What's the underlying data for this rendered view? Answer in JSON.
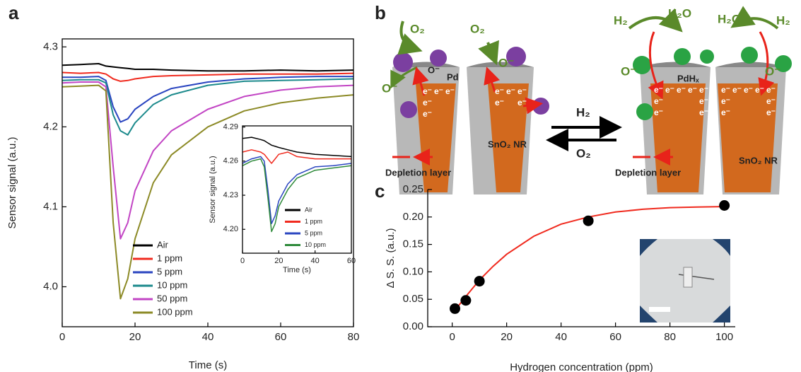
{
  "panel_labels": [
    "a",
    "b",
    "c"
  ],
  "chart_data": [
    {
      "type": "line",
      "xlabel": "Time (s)",
      "ylabel": "Sensor signal (a.u.)",
      "x": [
        0,
        5,
        10,
        12,
        14,
        16,
        18,
        20,
        25,
        30,
        40,
        50,
        60,
        70,
        80
      ],
      "series": [
        {
          "name": "Air",
          "color": "#000000",
          "values": [
            4.277,
            4.278,
            4.279,
            4.276,
            4.275,
            4.274,
            4.273,
            4.272,
            4.272,
            4.271,
            4.27,
            4.27,
            4.271,
            4.27,
            4.271
          ]
        },
        {
          "name": "1 ppm",
          "color": "#f02a1e",
          "values": [
            4.268,
            4.267,
            4.268,
            4.266,
            4.26,
            4.257,
            4.258,
            4.26,
            4.263,
            4.264,
            4.265,
            4.266,
            4.266,
            4.266,
            4.267
          ]
        },
        {
          "name": "5 ppm",
          "color": "#2a45c0",
          "values": [
            4.262,
            4.262,
            4.263,
            4.258,
            4.225,
            4.206,
            4.21,
            4.222,
            4.238,
            4.248,
            4.256,
            4.26,
            4.262,
            4.263,
            4.263
          ]
        },
        {
          "name": "10 ppm",
          "color": "#1c8a8c",
          "values": [
            4.258,
            4.259,
            4.259,
            4.255,
            4.215,
            4.195,
            4.19,
            4.205,
            4.228,
            4.24,
            4.252,
            4.257,
            4.258,
            4.259,
            4.26
          ]
        },
        {
          "name": "50 ppm",
          "color": "#c245c4",
          "values": [
            4.255,
            4.256,
            4.256,
            4.25,
            4.15,
            4.06,
            4.08,
            4.12,
            4.17,
            4.195,
            4.222,
            4.238,
            4.246,
            4.25,
            4.252
          ]
        },
        {
          "name": "100 ppm",
          "color": "#8c8a26",
          "values": [
            4.25,
            4.251,
            4.252,
            4.245,
            4.08,
            3.985,
            4.01,
            4.06,
            4.13,
            4.165,
            4.2,
            4.22,
            4.23,
            4.236,
            4.24
          ]
        }
      ],
      "xlim": [
        0,
        80
      ],
      "ylim": [
        3.95,
        4.31
      ],
      "xticks": [
        0,
        20,
        40,
        60,
        80
      ],
      "yticks": [
        {
          "value": 4,
          "label": "4.0"
        },
        4.1,
        4.2,
        4.3
      ],
      "legend": "lower center",
      "frame": true
    },
    {
      "type": "line",
      "xlabel": "Time (s)",
      "ylabel": "Sensor signal (a.u.)",
      "x": [
        0,
        5,
        10,
        12,
        14,
        16,
        18,
        20,
        25,
        30,
        40,
        50,
        60
      ],
      "series": [
        {
          "name": "Air",
          "color": "#000000",
          "values": [
            4.28,
            4.281,
            4.279,
            4.278,
            4.276,
            4.274,
            4.273,
            4.272,
            4.27,
            4.268,
            4.266,
            4.265,
            4.264
          ]
        },
        {
          "name": "1 ppm",
          "color": "#f02a1e",
          "values": [
            4.268,
            4.27,
            4.268,
            4.266,
            4.262,
            4.258,
            4.262,
            4.266,
            4.268,
            4.264,
            4.262,
            4.262,
            4.262
          ]
        },
        {
          "name": "5 ppm",
          "color": "#2a45c0",
          "values": [
            4.258,
            4.262,
            4.264,
            4.26,
            4.235,
            4.205,
            4.212,
            4.225,
            4.24,
            4.248,
            4.255,
            4.256,
            4.258
          ]
        },
        {
          "name": "10 ppm",
          "color": "#2e8a3a",
          "values": [
            4.256,
            4.26,
            4.262,
            4.255,
            4.228,
            4.198,
            4.205,
            4.22,
            4.235,
            4.245,
            4.252,
            4.254,
            4.256
          ]
        }
      ],
      "xlim": [
        0,
        60
      ],
      "ylim": [
        4.179,
        4.291
      ],
      "xticks": [
        0,
        20,
        40,
        60
      ],
      "yticks": [
        {
          "value": 4.2,
          "label": "4.20"
        },
        4.23,
        4.26,
        4.29
      ],
      "legend": "lower right",
      "frame": true
    },
    {
      "type": "scatter",
      "xlabel": "Hydrogen concentration (ppm)",
      "ylabel": "Δ S. S. (a.u.)",
      "points": {
        "color": "#000000",
        "x": [
          1,
          5,
          10,
          50,
          100
        ],
        "values": [
          0.033,
          0.048,
          0.083,
          0.193,
          0.221
        ]
      },
      "fit": {
        "color": "#f02a1e",
        "x": [
          1,
          5,
          10,
          15,
          20,
          30,
          40,
          50,
          60,
          70,
          80,
          90,
          100
        ],
        "values": [
          0.03,
          0.055,
          0.085,
          0.11,
          0.132,
          0.165,
          0.187,
          0.2,
          0.209,
          0.214,
          0.217,
          0.218,
          0.219
        ]
      },
      "xlim": [
        -9,
        104
      ],
      "ylim": [
        0,
        0.25
      ],
      "xticks": [
        0,
        20,
        40,
        60,
        80,
        100
      ],
      "yticks": [
        {
          "value": 0,
          "label": "0.00"
        },
        0.05,
        {
          "value": 0.1,
          "label": "0.10"
        },
        0.15,
        {
          "value": 0.2,
          "label": "0.20"
        },
        0.25
      ],
      "frame": false
    }
  ],
  "diagram": {
    "o2": "O₂",
    "o_minus": "O⁻",
    "pd": "Pd",
    "pdhx": "PdHₓ",
    "nr": "SnO₂ NR",
    "depletion": "Depletion layer",
    "h2": "H₂",
    "h2o": "H₂O",
    "electron": "e⁻"
  }
}
